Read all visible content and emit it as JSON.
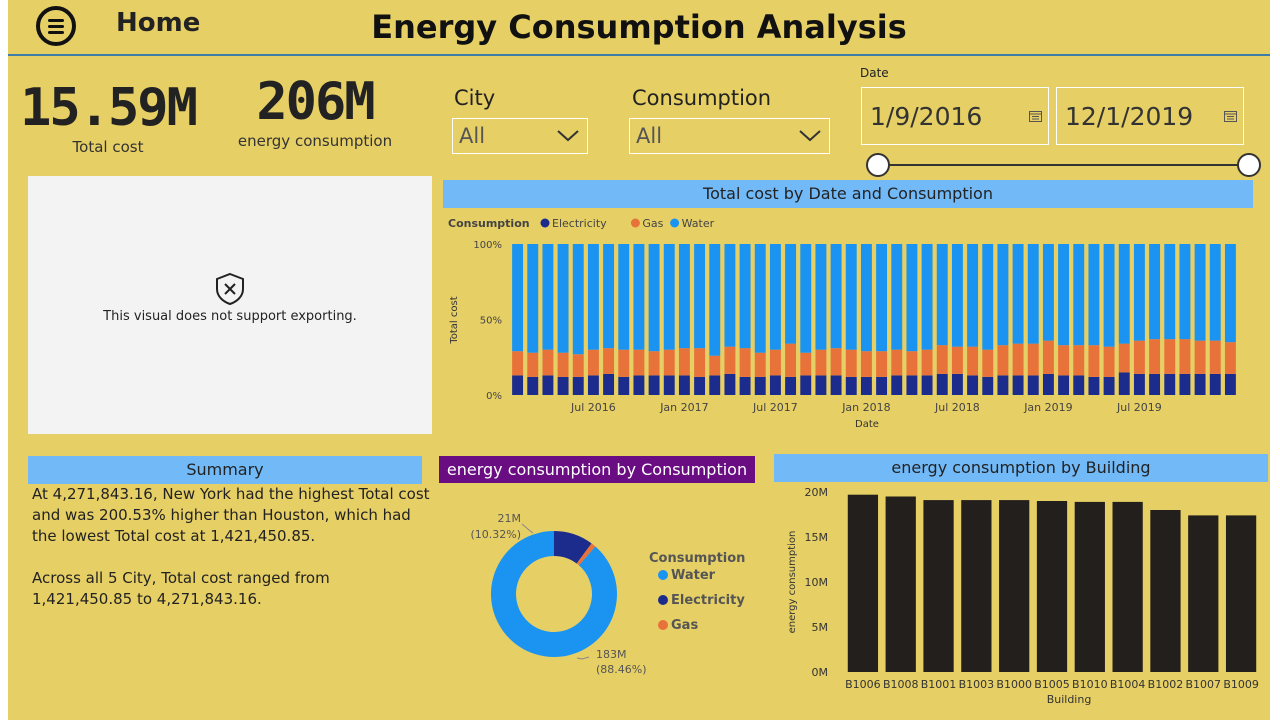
{
  "header": {
    "home_label": "Home",
    "title": "Energy Consumption Analysis"
  },
  "kpis": {
    "total_cost": {
      "value": "15.59M",
      "label": "Total cost"
    },
    "energy": {
      "value": "206M",
      "label": "energy consumption"
    }
  },
  "filters": {
    "city": {
      "label": "City",
      "value": "All"
    },
    "consumption": {
      "label": "Consumption",
      "value": "All"
    },
    "date": {
      "label": "Date",
      "start": "1/9/2016",
      "end": "12/1/2019"
    }
  },
  "no_export_visual": {
    "message": "This visual does not support exporting."
  },
  "summary": {
    "title": "Summary",
    "paragraph1": "At 4,271,843.16, New York had the highest Total cost and was 200.53% higher than Houston, which had the lowest Total cost at 1,421,450.85.",
    "paragraph2": "Across all 5 City, Total cost ranged from 1,421,450.85 to 4,271,843.16."
  },
  "colors": {
    "background": "#E6CF65",
    "header_blue": "#72B9F7",
    "purple": "#6A0D82",
    "electricity": "#1B2C8C",
    "gas": "#E8733A",
    "water": "#1A94F0",
    "building_bar": "#231F1C"
  },
  "chart_data": [
    {
      "type": "bar",
      "stacked": "100%",
      "title": "Total cost by Date and Consumption",
      "legend_title": "Consumption",
      "xlabel": "Date",
      "ylabel": "Total cost",
      "y_ticks": [
        "0%",
        "50%",
        "100%"
      ],
      "x_tick_labels": [
        "Jul 2016",
        "Jan 2017",
        "Jul 2017",
        "Jan 2018",
        "Jul 2018",
        "Jan 2019",
        "Jul 2019"
      ],
      "x_tick_positions": [
        5.5,
        11.5,
        17.5,
        23.5,
        29.5,
        35.5,
        41.5
      ],
      "categories_count": 48,
      "series": [
        {
          "name": "Electricity",
          "values": [
            13,
            12,
            13,
            12,
            12,
            13,
            14,
            12,
            13,
            13,
            13,
            13,
            12,
            13,
            14,
            12,
            12,
            13,
            12,
            13,
            13,
            13,
            12,
            12,
            12,
            13,
            13,
            13,
            14,
            14,
            13,
            12,
            13,
            13,
            13,
            14,
            13,
            13,
            12,
            12,
            15,
            14,
            14,
            14,
            14,
            14,
            14,
            14
          ]
        },
        {
          "name": "Gas",
          "values": [
            16,
            16,
            17,
            16,
            15,
            17,
            17,
            18,
            17,
            16,
            17,
            18,
            19,
            13,
            18,
            19,
            16,
            17,
            22,
            15,
            17,
            18,
            18,
            17,
            17,
            17,
            16,
            17,
            19,
            18,
            19,
            18,
            20,
            21,
            21,
            22,
            20,
            20,
            21,
            20,
            19,
            22,
            23,
            23,
            23,
            22,
            22,
            21
          ]
        },
        {
          "name": "Water",
          "values": [
            71,
            72,
            70,
            72,
            73,
            70,
            69,
            70,
            70,
            71,
            70,
            69,
            69,
            74,
            68,
            69,
            72,
            70,
            66,
            72,
            70,
            69,
            70,
            71,
            71,
            70,
            71,
            70,
            67,
            68,
            68,
            70,
            67,
            66,
            66,
            64,
            67,
            67,
            67,
            68,
            66,
            64,
            63,
            63,
            63,
            64,
            64,
            65
          ]
        }
      ]
    },
    {
      "type": "pie",
      "donut": true,
      "title": "energy consumption by Consumption",
      "legend_title": "Consumption",
      "slices": [
        {
          "name": "Water",
          "value": 183,
          "label": "183M",
          "pct_label": "(88.46%)"
        },
        {
          "name": "Electricity",
          "value": 21,
          "label": "21M",
          "pct_label": "(10.32%)"
        },
        {
          "name": "Gas",
          "value": 2.5
        }
      ]
    },
    {
      "type": "bar",
      "title": "energy consumption by Building",
      "xlabel": "Building",
      "ylabel": "energy consumption",
      "ylim": [
        0,
        20
      ],
      "y_ticks": [
        "0M",
        "5M",
        "10M",
        "15M",
        "20M"
      ],
      "categories": [
        "B1006",
        "B1008",
        "B1001",
        "B1003",
        "B1000",
        "B1005",
        "B1010",
        "B1004",
        "B1002",
        "B1007",
        "B1009"
      ],
      "values": [
        19.7,
        19.5,
        19.1,
        19.1,
        19.1,
        19.0,
        18.9,
        18.9,
        18.0,
        17.4,
        17.4
      ]
    }
  ]
}
